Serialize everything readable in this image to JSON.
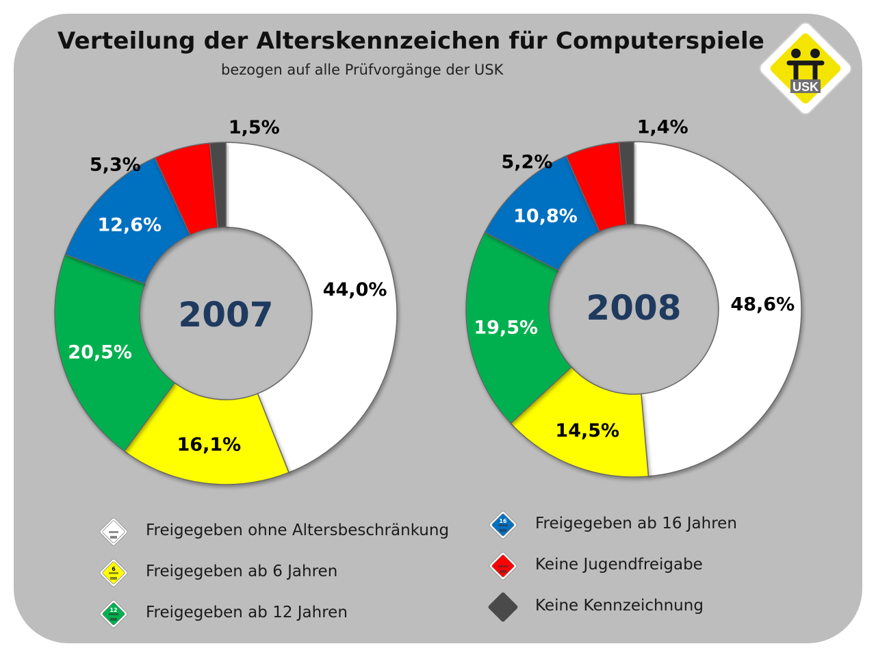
{
  "title": "Verteilung der Alterskennzeichen für Computerspiele",
  "subtitle": "bezogen auf alle Prüfvorgänge der USK",
  "logo_text": "USK",
  "chart_data": [
    {
      "type": "pie",
      "center_label": "2007",
      "categories": [
        "Freigegeben ohne Altersbeschränkung",
        "Freigegeben ab 6 Jahren",
        "Freigegeben ab 12 Jahren",
        "Freigegeben ab 16 Jahren",
        "Keine Jugendfreigabe",
        "Keine Kennzeichnung"
      ],
      "values": [
        44.0,
        16.1,
        20.5,
        12.6,
        5.3,
        1.5
      ],
      "labels": [
        "44,0%",
        "16,1%",
        "20,5%",
        "12,6%",
        "5,3%",
        "1,5%"
      ],
      "colors": [
        "#ffffff",
        "#ffff00",
        "#00b050",
        "#0070c0",
        "#ff0000",
        "#4a4a4a"
      ],
      "label_colors": [
        "#000000",
        "#000000",
        "#ffffff",
        "#ffffff",
        "#000000",
        "#000000"
      ],
      "donut": true
    },
    {
      "type": "pie",
      "center_label": "2008",
      "categories": [
        "Freigegeben ohne Altersbeschränkung",
        "Freigegeben ab 6 Jahren",
        "Freigegeben ab 12 Jahren",
        "Freigegeben ab 16 Jahren",
        "Keine Jugendfreigabe",
        "Keine Kennzeichnung"
      ],
      "values": [
        48.6,
        14.5,
        19.5,
        10.8,
        5.2,
        1.4
      ],
      "labels": [
        "48,6%",
        "14,5%",
        "19,5%",
        "10,8%",
        "5,2%",
        "1,4%"
      ],
      "colors": [
        "#ffffff",
        "#ffff00",
        "#00b050",
        "#0070c0",
        "#ff0000",
        "#4a4a4a"
      ],
      "label_colors": [
        "#000000",
        "#000000",
        "#ffffff",
        "#ffffff",
        "#000000",
        "#000000"
      ],
      "donut": true
    }
  ],
  "legend": [
    {
      "label": "Freigegeben ohne Altersbeschränkung",
      "color": "#ffffff",
      "badge_text": "",
      "icon": "usk-0-badge-icon"
    },
    {
      "label": "Freigegeben ab 6 Jahren",
      "color": "#ffff00",
      "badge_text": "6",
      "icon": "usk-6-badge-icon"
    },
    {
      "label": "Freigegeben ab 12 Jahren",
      "color": "#00b050",
      "badge_text": "12",
      "icon": "usk-12-badge-icon"
    },
    {
      "label": "Freigegeben ab 16 Jahren",
      "color": "#0070c0",
      "badge_text": "16",
      "icon": "usk-16-badge-icon"
    },
    {
      "label": "Keine Jugendfreigabe",
      "color": "#ff0000",
      "badge_text": "",
      "icon": "usk-18-badge-icon"
    },
    {
      "label": "Keine Kennzeichnung",
      "color": "#4a4a4a",
      "badge_text": "",
      "icon": "no-rating-icon"
    }
  ],
  "center_label_color": "#1f3a5f"
}
